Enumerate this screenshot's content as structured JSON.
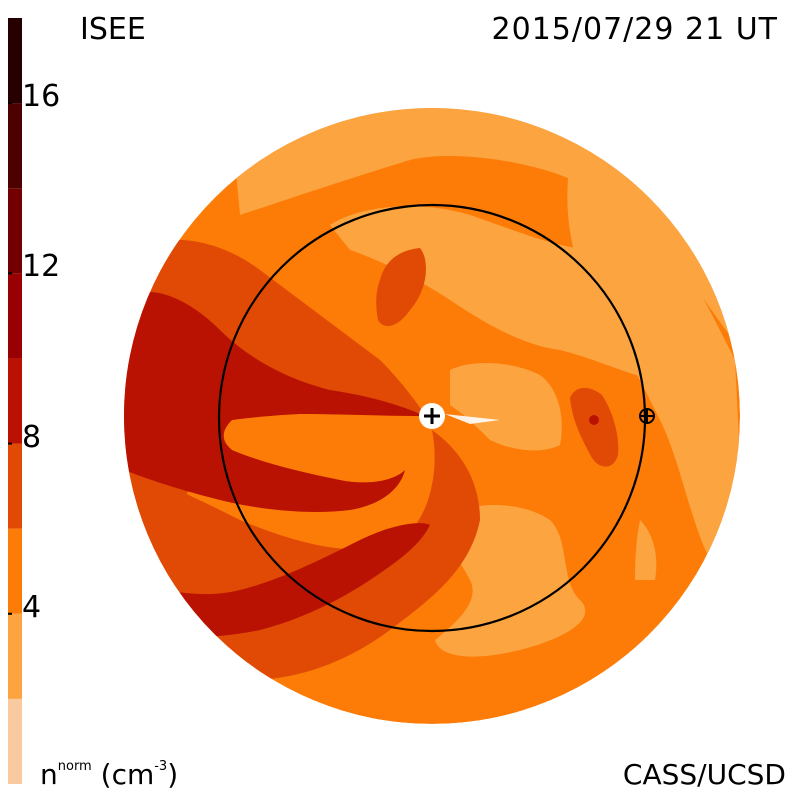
{
  "header": {
    "source_label": "ISEE",
    "timestamp": "2015/07/29 21 UT"
  },
  "footer": {
    "credit": "CASS/UCSD",
    "unit_base": "n",
    "unit_sup": "norm",
    "unit_paren": "(cm",
    "unit_exp": "-3",
    "unit_close": ")"
  },
  "chart_data": {
    "type": "heatmap",
    "projection": "ecliptic-plane polar view, Sun at center",
    "quantity": "normalized solar wind density",
    "colorbar": {
      "orientation": "vertical-left",
      "range": [
        0,
        18
      ],
      "levels": [
        0,
        2,
        4,
        6,
        8,
        10,
        12,
        14,
        16,
        18
      ],
      "colors": [
        "#f9caa0",
        "#fba440",
        "#fd7c08",
        "#e04a04",
        "#ba1202",
        "#980002",
        "#720002",
        "#4c0000",
        "#260000"
      ],
      "tick_values": [
        4,
        8,
        12,
        16
      ],
      "tick_labels": [
        "4",
        "8",
        "12",
        "16"
      ]
    },
    "markers": [
      {
        "name": "Sun",
        "symbol": "plus-in-circle",
        "position": "center"
      },
      {
        "name": "Earth",
        "symbol": "circled-plus",
        "position": "on-orbit-right"
      }
    ],
    "reference_circle": "Earth orbit (1 AU)"
  }
}
